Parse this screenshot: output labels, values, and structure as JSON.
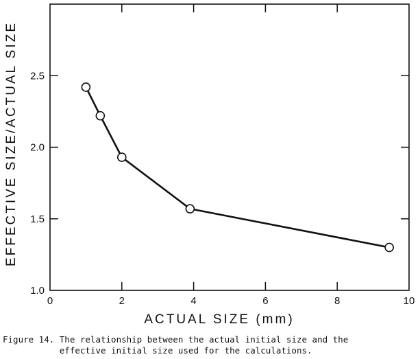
{
  "chart_data": {
    "type": "line",
    "title": "",
    "xlabel": "ACTUAL SIZE (mm)",
    "ylabel": "EFFECTIVE SIZE/ACTUAL SIZE",
    "xlim": [
      0,
      10
    ],
    "ylim": [
      1.0,
      3.0
    ],
    "x_ticks": [
      "0",
      "2",
      "4",
      "6",
      "8",
      "10"
    ],
    "y_ticks": [
      "1.0",
      "1.5",
      "2.0",
      "2.5"
    ],
    "grid": false,
    "marker": "open-circle",
    "series": [
      {
        "x": [
          1.0,
          1.4,
          2.0,
          3.9,
          9.45
        ],
        "y": [
          2.42,
          2.22,
          1.93,
          1.57,
          1.3
        ]
      }
    ]
  },
  "caption": {
    "line1": "Figure 14. The relationship between the actual initial size and the",
    "line2": "           effective initial size used for the calculations."
  }
}
